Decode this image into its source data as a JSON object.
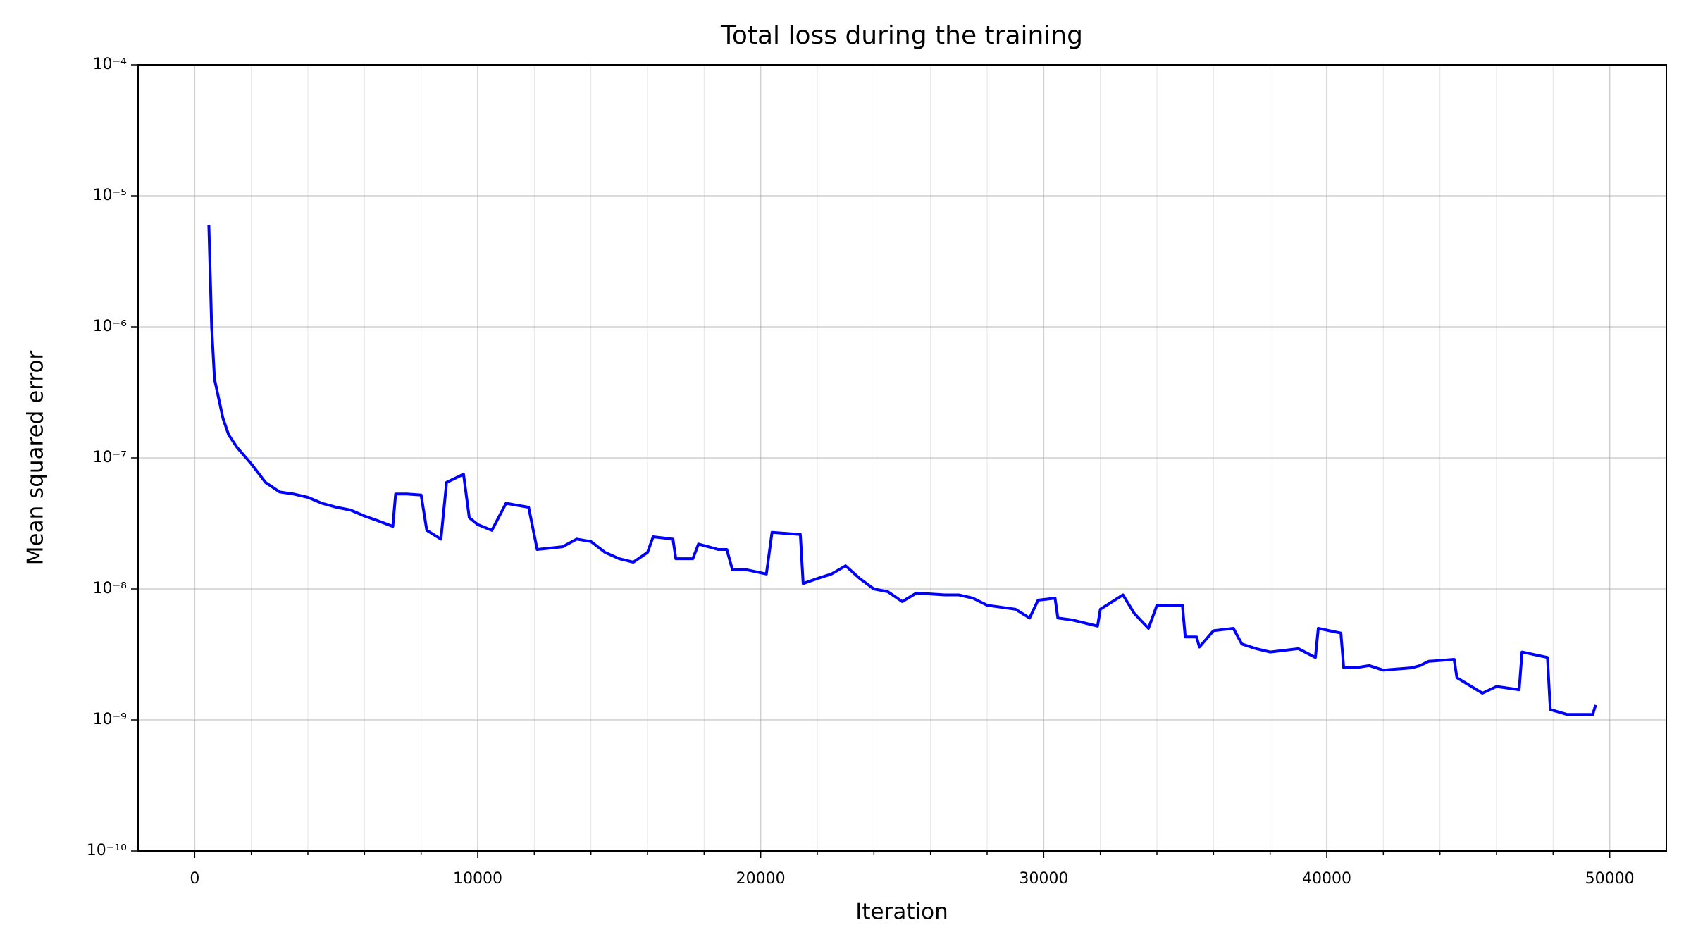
{
  "chart_data": {
    "type": "line",
    "title": "Total loss during the training",
    "xlabel": "Iteration",
    "ylabel": "Mean squared error",
    "log_y": true,
    "grid": true,
    "xlim": [
      -2000,
      52000
    ],
    "xticks": [
      0,
      10000,
      20000,
      30000,
      40000,
      50000
    ],
    "xticks_minor": [
      2000,
      4000,
      6000,
      8000,
      12000,
      14000,
      16000,
      18000,
      22000,
      24000,
      26000,
      28000,
      32000,
      34000,
      36000,
      38000,
      42000,
      44000,
      46000,
      48000
    ],
    "ylim": [
      1e-10,
      0.0001
    ],
    "yticks": [
      {
        "value": 1e-10,
        "label": "10⁻¹⁰"
      },
      {
        "value": 1e-09,
        "label": "10⁻⁹"
      },
      {
        "value": 1e-08,
        "label": "10⁻⁸"
      },
      {
        "value": 1e-07,
        "label": "10⁻⁷"
      },
      {
        "value": 1e-06,
        "label": "10⁻⁶"
      },
      {
        "value": 1e-05,
        "label": "10⁻⁵"
      },
      {
        "value": 0.0001,
        "label": "10⁻⁴"
      }
    ],
    "x": [
      500,
      600,
      700,
      1000,
      1200,
      1500,
      2000,
      2500,
      3000,
      3500,
      4000,
      4500,
      5000,
      5500,
      6000,
      6500,
      7000,
      7100,
      7500,
      8000,
      8200,
      8700,
      8900,
      9500,
      9700,
      10000,
      10500,
      11000,
      11800,
      12100,
      13000,
      13500,
      14000,
      14500,
      15000,
      15500,
      16000,
      16200,
      16900,
      17000,
      17600,
      17800,
      18500,
      18800,
      19000,
      19500,
      20200,
      20400,
      21400,
      21500,
      22000,
      22500,
      23000,
      23500,
      24000,
      24500,
      25000,
      25500,
      26500,
      27000,
      27500,
      28000,
      29000,
      29500,
      29800,
      30400,
      30500,
      31000,
      31900,
      32000,
      32800,
      33200,
      33700,
      34000,
      34900,
      35000,
      35400,
      35500,
      36000,
      36700,
      37000,
      37500,
      38000,
      39000,
      39600,
      39700,
      40500,
      40600,
      41000,
      41500,
      42000,
      43000,
      43300,
      43600,
      44500,
      44600,
      45500,
      46000,
      46800,
      46900,
      47800,
      47900,
      48500,
      49000,
      49400,
      49500
    ],
    "series": [
      {
        "name": "Total loss",
        "color": "#0000ff",
        "values": [
          6e-06,
          1e-06,
          4e-07,
          2e-07,
          1.5e-07,
          1.2e-07,
          9e-08,
          6.5e-08,
          5.5e-08,
          5.3e-08,
          5e-08,
          4.5e-08,
          4.2e-08,
          4e-08,
          3.6e-08,
          3.3e-08,
          3e-08,
          5.3e-08,
          5.3e-08,
          5.2e-08,
          2.8e-08,
          2.4e-08,
          6.5e-08,
          7.5e-08,
          3.5e-08,
          3.1e-08,
          2.8e-08,
          4.5e-08,
          4.2e-08,
          2e-08,
          2.1e-08,
          2.4e-08,
          2.3e-08,
          1.9e-08,
          1.7e-08,
          1.6e-08,
          1.9e-08,
          2.5e-08,
          2.4e-08,
          1.7e-08,
          1.7e-08,
          2.2e-08,
          2e-08,
          2e-08,
          1.4e-08,
          1.4e-08,
          1.3e-08,
          2.7e-08,
          2.6e-08,
          1.1e-08,
          1.2e-08,
          1.3e-08,
          1.5e-08,
          1.2e-08,
          1e-08,
          9.5e-09,
          8e-09,
          9.3e-09,
          9e-09,
          9e-09,
          8.5e-09,
          7.5e-09,
          7e-09,
          6e-09,
          8.2e-09,
          8.5e-09,
          6e-09,
          5.8e-09,
          5.2e-09,
          7e-09,
          9e-09,
          6.5e-09,
          5e-09,
          7.5e-09,
          7.5e-09,
          4.3e-09,
          4.3e-09,
          3.6e-09,
          4.8e-09,
          5e-09,
          3.8e-09,
          3.5e-09,
          3.3e-09,
          3.5e-09,
          3e-09,
          5e-09,
          4.6e-09,
          2.5e-09,
          2.5e-09,
          2.6e-09,
          2.4e-09,
          2.5e-09,
          2.6e-09,
          2.8e-09,
          2.9e-09,
          2.1e-09,
          1.6e-09,
          1.8e-09,
          1.7e-09,
          3.3e-09,
          3e-09,
          1.2e-09,
          1.1e-09,
          1.1e-09,
          1.1e-09,
          1.3e-09
        ]
      }
    ]
  }
}
